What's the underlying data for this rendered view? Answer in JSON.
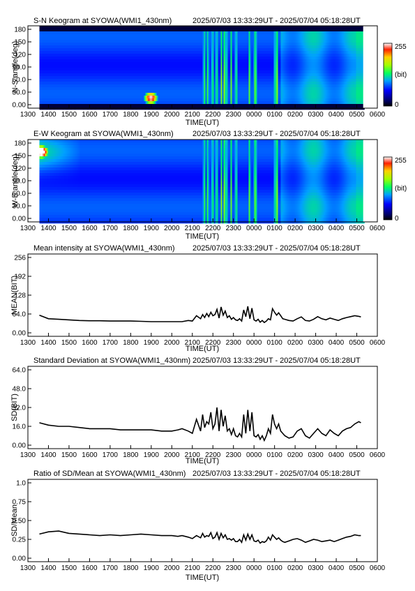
{
  "time_range": "2025/07/03 13:33:29UT - 2025/07/04 05:18:28UT",
  "x_ticks": [
    "1300",
    "1400",
    "1500",
    "1600",
    "1700",
    "1800",
    "1900",
    "2000",
    "2100",
    "2200",
    "2300",
    "0000",
    "0100",
    "0200",
    "0300",
    "0400",
    "0500",
    "0600"
  ],
  "xlabel": "TIME(UT)",
  "colorbar": {
    "max_label": "255",
    "unit_label": "(bit)",
    "min_label": "0"
  },
  "chart_data": [
    {
      "type": "heatmap",
      "title": "S-N Keogram at SYOWA(WMI1_430nm)",
      "ylabel": "N-S angle(deg)",
      "y_ticks": [
        "0.00",
        "30.0",
        "60.0",
        "90.0",
        "120",
        "150",
        "180"
      ],
      "ylim": [
        0,
        180
      ],
      "xlim_hours": [
        13.56,
        29.31
      ],
      "value_range": [
        0,
        255
      ],
      "bright_columns_hours": [
        21.55,
        21.72,
        21.95,
        22.15,
        22.38,
        22.52,
        22.62,
        22.85,
        23.1,
        23.75,
        24.0,
        24.05,
        25.0,
        25.1
      ],
      "hotspot": {
        "hour": 18.95,
        "angle_deg": 22,
        "value": 255
      }
    },
    {
      "type": "heatmap",
      "title": "E-W Keogram at SYOWA(WMI1_430nm)",
      "ylabel": "W-E angle(deg)",
      "y_ticks": [
        "0.00",
        "30.0",
        "60.0",
        "90.0",
        "120",
        "150",
        "180"
      ],
      "ylim": [
        0,
        180
      ],
      "xlim_hours": [
        13.56,
        29.31
      ],
      "value_range": [
        0,
        255
      ],
      "bright_columns_hours": [
        21.55,
        21.72,
        21.95,
        22.15,
        22.38,
        22.52,
        22.62,
        22.85,
        23.1,
        23.75,
        24.0,
        24.05,
        25.0,
        25.1
      ],
      "hotspot": {
        "hour": 13.62,
        "angle_deg": 153,
        "value": 255
      }
    },
    {
      "type": "line",
      "title": "Mean intensity at SYOWA(WMI1_430nm)",
      "ylabel": "MEAN(BIT)",
      "y_ticks": [
        "0.00",
        "64.0",
        "128",
        "192",
        "256"
      ],
      "ylim": [
        0,
        256
      ],
      "x_hours": [
        13.56,
        14.0,
        14.5,
        15.0,
        15.5,
        16.0,
        16.5,
        17.0,
        17.5,
        18.0,
        18.5,
        19.0,
        19.5,
        20.0,
        20.3,
        20.5,
        20.8,
        21.0,
        21.2,
        21.4,
        21.5,
        21.6,
        21.7,
        21.8,
        21.9,
        22.0,
        22.1,
        22.2,
        22.3,
        22.4,
        22.5,
        22.6,
        22.7,
        22.8,
        22.9,
        23.0,
        23.1,
        23.2,
        23.3,
        23.4,
        23.5,
        23.6,
        23.7,
        23.8,
        23.9,
        24.0,
        24.1,
        24.2,
        24.3,
        24.4,
        24.5,
        24.6,
        24.7,
        24.8,
        24.9,
        25.0,
        25.1,
        25.2,
        25.3,
        25.4,
        25.5,
        25.7,
        25.9,
        26.1,
        26.3,
        26.5,
        26.7,
        26.9,
        27.1,
        27.3,
        27.5,
        27.7,
        27.9,
        28.1,
        28.3,
        28.5,
        28.7,
        28.9,
        29.1,
        29.2
      ],
      "y": [
        60,
        48,
        46,
        44,
        42,
        41,
        41,
        40,
        40,
        40,
        39,
        38,
        38,
        38,
        38,
        38,
        42,
        40,
        58,
        48,
        62,
        52,
        66,
        55,
        70,
        58,
        62,
        80,
        50,
        88,
        60,
        74,
        52,
        58,
        46,
        52,
        44,
        42,
        48,
        40,
        78,
        55,
        90,
        48,
        84,
        44,
        40,
        46,
        36,
        42,
        35,
        40,
        48,
        44,
        82,
        70,
        60,
        68,
        58,
        48,
        46,
        42,
        40,
        48,
        54,
        42,
        40,
        46,
        55,
        48,
        44,
        50,
        46,
        42,
        48,
        52,
        55,
        58,
        56,
        54
      ]
    },
    {
      "type": "line",
      "title": "Standard Deviation at SYOWA(WMI1_430nm)",
      "ylabel": "SD(BIT)",
      "y_ticks": [
        "0.00",
        "16.0",
        "32.0",
        "48.0",
        "64.0"
      ],
      "ylim": [
        0,
        64
      ],
      "x_hours": [
        13.56,
        14.0,
        14.5,
        15.0,
        15.5,
        16.0,
        16.5,
        17.0,
        17.5,
        18.0,
        18.5,
        19.0,
        19.5,
        20.0,
        20.3,
        20.5,
        20.8,
        21.0,
        21.2,
        21.4,
        21.5,
        21.6,
        21.7,
        21.8,
        21.9,
        22.0,
        22.1,
        22.2,
        22.3,
        22.4,
        22.5,
        22.6,
        22.7,
        22.8,
        22.9,
        23.0,
        23.1,
        23.2,
        23.3,
        23.4,
        23.5,
        23.6,
        23.7,
        23.8,
        23.9,
        24.0,
        24.1,
        24.2,
        24.3,
        24.4,
        24.5,
        24.6,
        24.7,
        24.8,
        24.9,
        25.0,
        25.1,
        25.2,
        25.3,
        25.4,
        25.5,
        25.7,
        25.9,
        26.1,
        26.3,
        26.5,
        26.7,
        26.9,
        27.1,
        27.3,
        27.5,
        27.7,
        27.9,
        28.1,
        28.3,
        28.5,
        28.7,
        28.9,
        29.1,
        29.2
      ],
      "y": [
        19,
        17,
        16,
        16,
        15,
        14,
        14,
        14,
        13,
        13,
        13,
        13,
        12,
        12,
        13,
        14,
        12,
        10,
        22,
        12,
        26,
        15,
        20,
        18,
        28,
        14,
        18,
        32,
        12,
        30,
        16,
        25,
        12,
        14,
        9,
        14,
        8,
        7,
        10,
        7,
        26,
        10,
        30,
        12,
        28,
        8,
        7,
        9,
        5,
        8,
        4,
        8,
        14,
        10,
        26,
        18,
        14,
        18,
        12,
        10,
        8,
        6,
        7,
        12,
        14,
        8,
        6,
        10,
        14,
        10,
        8,
        13,
        10,
        8,
        12,
        14,
        15,
        18,
        20,
        19
      ]
    },
    {
      "type": "line",
      "title": "Ratio of SD/Mean at SYOWA(WMI1_430nm)",
      "ylabel": "SD/Mean",
      "y_ticks": [
        "0.00",
        "0.25",
        "0.50",
        "0.75",
        "1.0"
      ],
      "ylim": [
        0,
        1.0
      ],
      "x_hours": [
        13.56,
        14.0,
        14.5,
        15.0,
        15.5,
        16.0,
        16.5,
        17.0,
        17.5,
        18.0,
        18.5,
        19.0,
        19.5,
        20.0,
        20.3,
        20.5,
        20.8,
        21.0,
        21.2,
        21.4,
        21.5,
        21.6,
        21.7,
        21.8,
        21.9,
        22.0,
        22.1,
        22.2,
        22.3,
        22.4,
        22.5,
        22.6,
        22.7,
        22.8,
        22.9,
        23.0,
        23.1,
        23.2,
        23.3,
        23.4,
        23.5,
        23.6,
        23.7,
        23.8,
        23.9,
        24.0,
        24.1,
        24.2,
        24.3,
        24.4,
        24.5,
        24.6,
        24.7,
        24.8,
        24.9,
        25.0,
        25.1,
        25.2,
        25.3,
        25.4,
        25.5,
        25.7,
        25.9,
        26.1,
        26.3,
        26.5,
        26.7,
        26.9,
        27.1,
        27.3,
        27.5,
        27.7,
        27.9,
        28.1,
        28.3,
        28.5,
        28.7,
        28.9,
        29.1,
        29.2
      ],
      "y": [
        0.32,
        0.35,
        0.36,
        0.33,
        0.32,
        0.31,
        0.3,
        0.31,
        0.3,
        0.31,
        0.32,
        0.31,
        0.3,
        0.3,
        0.29,
        0.3,
        0.28,
        0.26,
        0.3,
        0.27,
        0.33,
        0.28,
        0.3,
        0.29,
        0.34,
        0.26,
        0.28,
        0.34,
        0.25,
        0.33,
        0.27,
        0.31,
        0.25,
        0.26,
        0.24,
        0.26,
        0.22,
        0.22,
        0.25,
        0.21,
        0.31,
        0.24,
        0.32,
        0.25,
        0.31,
        0.23,
        0.22,
        0.24,
        0.2,
        0.22,
        0.21,
        0.23,
        0.28,
        0.24,
        0.31,
        0.28,
        0.25,
        0.27,
        0.24,
        0.22,
        0.21,
        0.23,
        0.25,
        0.26,
        0.24,
        0.21,
        0.23,
        0.25,
        0.24,
        0.22,
        0.23,
        0.24,
        0.22,
        0.24,
        0.26,
        0.28,
        0.29,
        0.31,
        0.3,
        0.3
      ]
    }
  ]
}
